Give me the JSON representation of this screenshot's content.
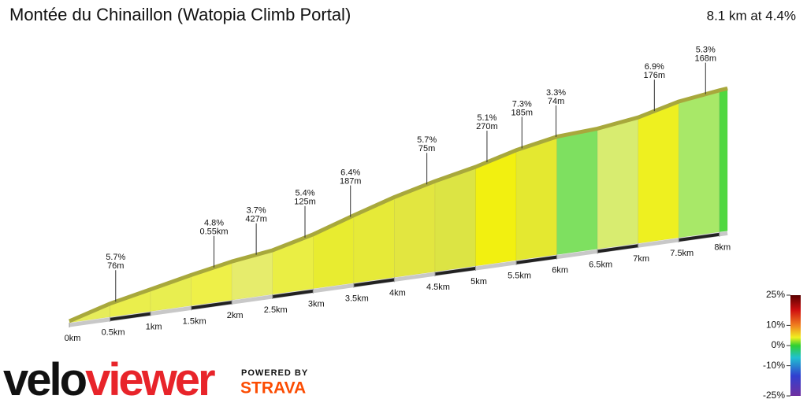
{
  "chart_data": {
    "type": "elevation-profile",
    "title": "Montée du Chinaillon  (Watopia Climb Portal)",
    "subtitle": "8.1 km at 4.4%",
    "x": [
      0,
      0.5,
      1,
      1.5,
      2,
      2.5,
      3,
      3.5,
      4,
      4.5,
      5,
      5.5,
      6,
      6.5,
      7,
      7.5,
      8,
      8.1
    ],
    "values": [
      0,
      30,
      52,
      74,
      94,
      108,
      134,
      168,
      200,
      226,
      248,
      276,
      296,
      302,
      316,
      342,
      356,
      358
    ],
    "colors": [
      "#e6ec5a",
      "#eaee4c",
      "#e8ee50",
      "#eef048",
      "#e6ec6c",
      "#eaee44",
      "#e8ec30",
      "#e6ea38",
      "#e2e640",
      "#dce444",
      "#f2f010",
      "#e4e830",
      "#7ee060",
      "#d8ec70",
      "#eef020",
      "#a8e868",
      "#50d840"
    ],
    "xticks": [
      {
        "value": 0,
        "label": "0km"
      },
      {
        "value": 0.5,
        "label": "0.5km"
      },
      {
        "value": 1,
        "label": "1km"
      },
      {
        "value": 1.5,
        "label": "1.5km"
      },
      {
        "value": 2,
        "label": "2km"
      },
      {
        "value": 2.5,
        "label": "2.5km"
      },
      {
        "value": 3,
        "label": "3km"
      },
      {
        "value": 3.5,
        "label": "3.5km"
      },
      {
        "value": 4,
        "label": "4km"
      },
      {
        "value": 4.5,
        "label": "4.5km"
      },
      {
        "value": 5,
        "label": "5km"
      },
      {
        "value": 5.5,
        "label": "5.5km"
      },
      {
        "value": 6,
        "label": "6km"
      },
      {
        "value": 6.5,
        "label": "6.5km"
      },
      {
        "value": 7,
        "label": "7km"
      },
      {
        "value": 7.5,
        "label": "7.5km"
      },
      {
        "value": 8,
        "label": "8km"
      }
    ],
    "annotations": [
      {
        "x": 0.57,
        "gradient": "5.7%",
        "length": "76m"
      },
      {
        "x": 1.78,
        "gradient": "4.8%",
        "length": "0.55km"
      },
      {
        "x": 2.3,
        "gradient": "3.7%",
        "length": "427m"
      },
      {
        "x": 2.9,
        "gradient": "5.4%",
        "length": "125m"
      },
      {
        "x": 3.46,
        "gradient": "6.4%",
        "length": "187m"
      },
      {
        "x": 4.4,
        "gradient": "5.7%",
        "length": "75m"
      },
      {
        "x": 5.14,
        "gradient": "5.1%",
        "length": "270m"
      },
      {
        "x": 5.57,
        "gradient": "7.3%",
        "length": "185m"
      },
      {
        "x": 5.99,
        "gradient": "3.3%",
        "length": "74m"
      },
      {
        "x": 7.2,
        "gradient": "6.9%",
        "length": "176m"
      },
      {
        "x": 7.83,
        "gradient": "5.3%",
        "length": "168m"
      }
    ],
    "colorbar": {
      "lim": [
        -25,
        25
      ],
      "ticks": [
        {
          "value": 25,
          "label": "25%"
        },
        {
          "value": 10,
          "label": "10%"
        },
        {
          "value": 0,
          "label": "0%"
        },
        {
          "value": -10,
          "label": "-10%"
        },
        {
          "value": -25,
          "label": "-25%"
        }
      ]
    }
  },
  "branding": {
    "logo_left": "velo",
    "logo_right": "viewer",
    "powered_by": "POWERED BY",
    "strava": "STRAVA"
  }
}
